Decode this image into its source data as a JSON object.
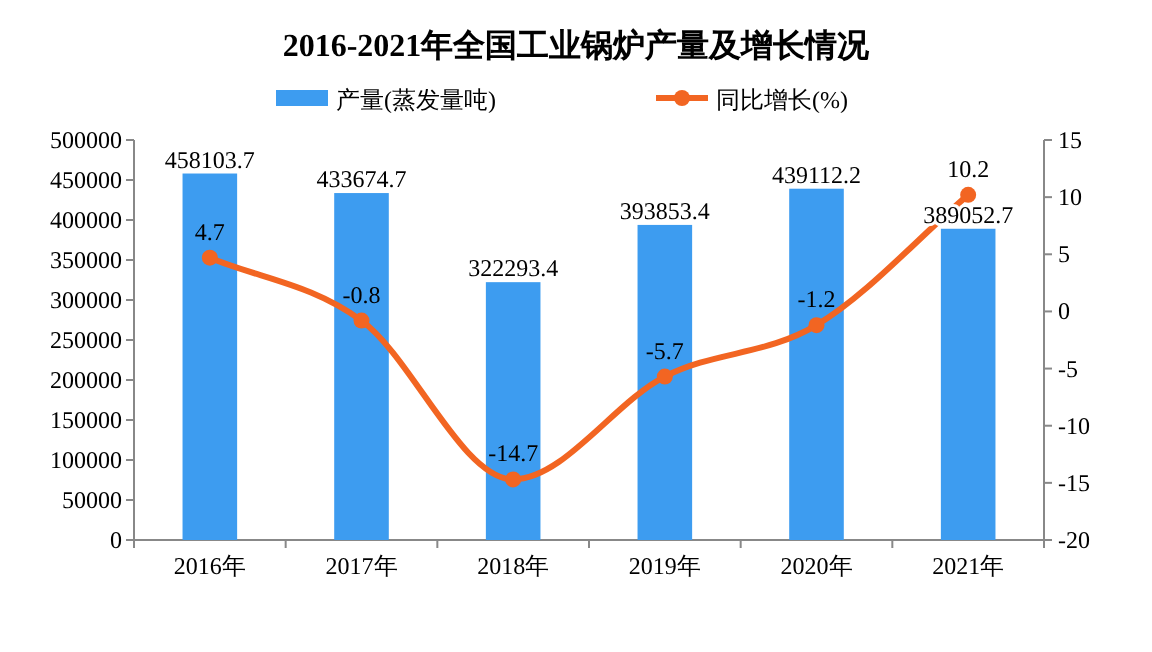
{
  "chart_data": {
    "type": "bar",
    "title": "2016-2021年全国工业锅炉产量及增长情况",
    "categories": [
      "2016年",
      "2017年",
      "2018年",
      "2019年",
      "2020年",
      "2021年"
    ],
    "series": [
      {
        "name": "产量(蒸发量吨)",
        "color": "#3d9cf0",
        "values": [
          458103.7,
          433674.7,
          322293.4,
          393853.4,
          439112.2,
          389052.7
        ]
      },
      {
        "name": "同比增长(%)",
        "type": "line",
        "axis": "y2",
        "color": "#f26522",
        "values": [
          4.7,
          -0.8,
          -14.7,
          -5.7,
          -1.2,
          10.2
        ]
      }
    ],
    "ylim": [
      0,
      500000
    ],
    "yticks": [
      0,
      50000,
      100000,
      150000,
      200000,
      250000,
      300000,
      350000,
      400000,
      450000,
      500000
    ],
    "y2lim": [
      -20,
      15
    ],
    "y2ticks": [
      -20,
      -15,
      -10,
      -5,
      0,
      5,
      10,
      15
    ],
    "data_labels": true,
    "legend": "top",
    "marker": "circle",
    "grid": false
  }
}
